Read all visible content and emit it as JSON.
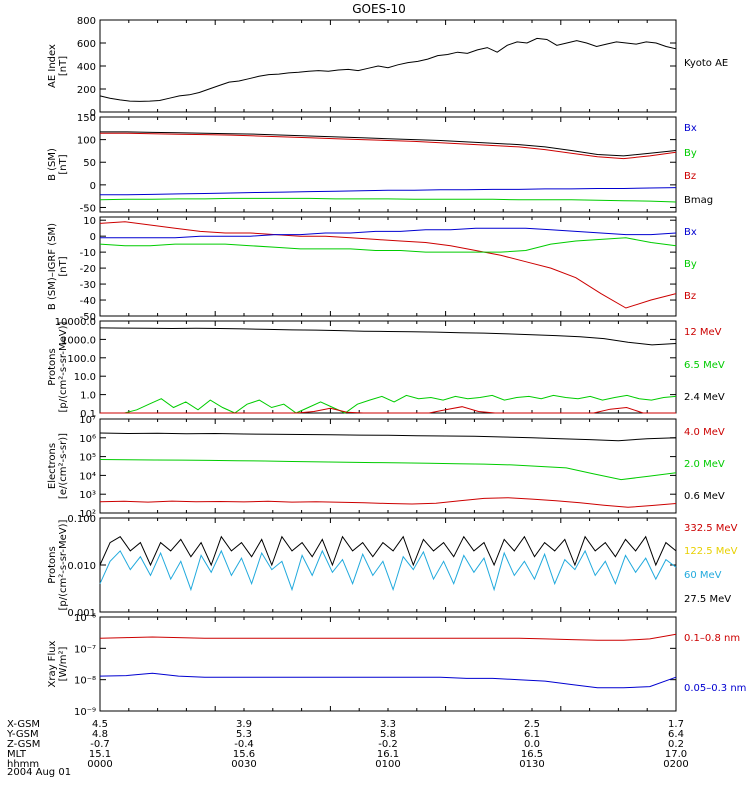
{
  "title": "GOES-10",
  "colors": {
    "black": "#000000",
    "blue": "#0000d0",
    "green": "#00cc00",
    "red": "#cc0000",
    "yellow": "#e8d000",
    "cyan": "#22aadd"
  },
  "chart_data": [
    {
      "type": "line",
      "ylabel": [
        "AE Index",
        "[nT]"
      ],
      "ylim": [
        0,
        800
      ],
      "log": false,
      "ticks": [
        "0",
        "200",
        "400",
        "600",
        "800"
      ],
      "tick_values": [
        0,
        200,
        400,
        600,
        800
      ],
      "legend": [
        {
          "label": "Kyoto AE",
          "color": "black"
        }
      ],
      "series": [
        {
          "name": "Kyoto AE",
          "color": "black",
          "values": [
            140,
            120,
            105,
            95,
            92,
            95,
            100,
            120,
            140,
            150,
            170,
            200,
            230,
            260,
            270,
            290,
            310,
            325,
            330,
            340,
            345,
            355,
            360,
            355,
            365,
            370,
            360,
            380,
            400,
            385,
            410,
            430,
            440,
            460,
            490,
            500,
            520,
            510,
            540,
            560,
            520,
            580,
            610,
            600,
            640,
            630,
            580,
            600,
            620,
            600,
            570,
            590,
            610,
            600,
            590,
            610,
            600,
            570,
            550
          ]
        }
      ]
    },
    {
      "type": "line",
      "ylabel": [
        "B (SM)",
        "[nT]"
      ],
      "ylim": [
        -60,
        150
      ],
      "log": false,
      "ticks": [
        "-50",
        "0",
        "50",
        "100",
        "150"
      ],
      "tick_values": [
        -50,
        0,
        50,
        100,
        150
      ],
      "legend": [
        {
          "label": "Bx",
          "color": "blue"
        },
        {
          "label": "By",
          "color": "green"
        },
        {
          "label": "Bz",
          "color": "red"
        },
        {
          "label": "Bmag",
          "color": "black"
        }
      ],
      "series": [
        {
          "name": "Bmag",
          "color": "black",
          "values": [
            117,
            117,
            116,
            115,
            114,
            113,
            112,
            110,
            108,
            106,
            104,
            102,
            100,
            98,
            95,
            92,
            89,
            84,
            76,
            67,
            64,
            70,
            76
          ]
        },
        {
          "name": "Bz",
          "color": "red",
          "values": [
            114,
            114,
            113,
            112,
            111,
            110,
            108,
            106,
            104,
            102,
            100,
            98,
            96,
            93,
            90,
            87,
            84,
            78,
            70,
            62,
            58,
            64,
            72
          ]
        },
        {
          "name": "Bx",
          "color": "blue",
          "values": [
            -22,
            -22,
            -21,
            -20,
            -19,
            -18,
            -17,
            -16,
            -15,
            -14,
            -13,
            -12,
            -12,
            -11,
            -11,
            -10,
            -10,
            -9,
            -9,
            -8,
            -8,
            -7,
            -6
          ]
        },
        {
          "name": "By",
          "color": "green",
          "values": [
            -33,
            -32,
            -32,
            -31,
            -31,
            -30,
            -30,
            -30,
            -30,
            -31,
            -31,
            -31,
            -32,
            -32,
            -32,
            -32,
            -33,
            -33,
            -33,
            -34,
            -35,
            -36,
            -38
          ]
        }
      ]
    },
    {
      "type": "line",
      "ylabel": [
        "B (SM)–IGRF (SM)",
        "[nT]"
      ],
      "ylim": [
        -50,
        12
      ],
      "log": false,
      "ticks": [
        "-50",
        "-40",
        "-30",
        "-20",
        "-10",
        "0",
        "10"
      ],
      "tick_values": [
        -50,
        -40,
        -30,
        -20,
        -10,
        0,
        10
      ],
      "legend": [
        {
          "label": "Bx",
          "color": "blue"
        },
        {
          "label": "By",
          "color": "green"
        },
        {
          "label": "Bz",
          "color": "red"
        }
      ],
      "series": [
        {
          "name": "Bz",
          "color": "red",
          "values": [
            8,
            9,
            7,
            5,
            3,
            2,
            2,
            1,
            0,
            0,
            -1,
            -2,
            -3,
            -4,
            -6,
            -9,
            -12,
            -16,
            -20,
            -26,
            -36,
            -45,
            -40,
            -36
          ]
        },
        {
          "name": "Bx",
          "color": "blue",
          "values": [
            -1,
            -1,
            -1,
            -1,
            0,
            0,
            0,
            1,
            1,
            2,
            2,
            3,
            3,
            4,
            4,
            5,
            5,
            5,
            4,
            3,
            2,
            1,
            1,
            2
          ]
        },
        {
          "name": "By",
          "color": "green",
          "values": [
            -5,
            -6,
            -6,
            -5,
            -5,
            -5,
            -6,
            -7,
            -8,
            -8,
            -8,
            -9,
            -9,
            -10,
            -10,
            -10,
            -10,
            -9,
            -5,
            -3,
            -2,
            -1,
            -4,
            -6
          ]
        }
      ]
    },
    {
      "type": "line",
      "ylabel": [
        "Protons",
        "[p/(cm²-s-sr-MeV)]"
      ],
      "ylim": [
        0.1,
        10000
      ],
      "log": true,
      "ticks": [
        "0.1",
        "1.0",
        "10.0",
        "100.0",
        "1000.0",
        "10000.0"
      ],
      "tick_values": [
        0.1,
        1,
        10,
        100,
        1000,
        10000
      ],
      "legend": [
        {
          "label": "12 MeV",
          "color": "red"
        },
        {
          "label": "6.5 MeV",
          "color": "green"
        },
        {
          "label": "2.4 MeV",
          "color": "black"
        }
      ],
      "series": [
        {
          "name": "2.4 MeV",
          "color": "black",
          "values": [
            4200,
            4100,
            4000,
            3900,
            4000,
            3900,
            3700,
            3500,
            3300,
            3200,
            3000,
            2800,
            2700,
            2600,
            2500,
            2300,
            2200,
            2000,
            1800,
            1600,
            1400,
            1100,
            700,
            500,
            600
          ]
        },
        {
          "name": "6.5 MeV",
          "color": "green",
          "values": [
            0.1,
            0.1,
            0.1,
            0.15,
            0.3,
            0.6,
            0.2,
            0.4,
            0.15,
            0.5,
            0.2,
            0.1,
            0.3,
            0.5,
            0.2,
            0.3,
            0.1,
            0.2,
            0.4,
            0.2,
            0.1,
            0.3,
            0.5,
            0.8,
            0.4,
            0.9,
            0.6,
            0.7,
            0.5,
            0.8,
            0.6,
            0.7,
            0.9,
            0.5,
            0.7,
            0.8,
            0.6,
            0.9,
            0.7,
            0.6,
            0.8,
            0.5,
            0.7,
            0.9,
            0.6,
            0.5,
            0.7,
            0.8
          ]
        },
        {
          "name": "12 MeV",
          "color": "red",
          "values": [
            0.1,
            0.1,
            0.1,
            0.1,
            0.1,
            0.1,
            0.1,
            0.1,
            0.1,
            0.1,
            0.1,
            0.1,
            0.1,
            0.12,
            0.18,
            0.11,
            0.1,
            0.1,
            0.1,
            0.1,
            0.1,
            0.15,
            0.22,
            0.12,
            0.1,
            0.1,
            0.1,
            0.1,
            0.1,
            0.1,
            0.1,
            0.16,
            0.2,
            0.1,
            0.1,
            0.1
          ]
        }
      ]
    },
    {
      "type": "line",
      "ylabel": [
        "Electrons",
        "[e/(cm²-s-sr)]"
      ],
      "ylim": [
        100,
        10000000
      ],
      "log": true,
      "ticks": [
        "10²",
        "10³",
        "10⁴",
        "10⁵",
        "10⁶",
        "10⁷"
      ],
      "tick_values": [
        100,
        1000,
        10000,
        100000,
        1000000,
        10000000
      ],
      "legend": [
        {
          "label": "4.0 MeV",
          "color": "red"
        },
        {
          "label": "2.0 MeV",
          "color": "green"
        },
        {
          "label": "0.6 MeV",
          "color": "black"
        }
      ],
      "series": [
        {
          "name": "0.6 MeV",
          "color": "black",
          "values": [
            1800000,
            1700000,
            1750000,
            1650000,
            1700000,
            1600000,
            1550000,
            1500000,
            1450000,
            1400000,
            1350000,
            1300000,
            1250000,
            1200000,
            1100000,
            1000000,
            900000,
            800000,
            700000,
            900000,
            1000000
          ]
        },
        {
          "name": "2.0 MeV",
          "color": "green",
          "values": [
            70000,
            68000,
            66000,
            65000,
            63000,
            60000,
            58000,
            55000,
            52000,
            50000,
            48000,
            46000,
            44000,
            42000,
            40000,
            36000,
            30000,
            25000,
            12000,
            6000,
            9000,
            14000
          ]
        },
        {
          "name": "4.0 MeV",
          "color": "red",
          "values": [
            400,
            420,
            380,
            430,
            400,
            410,
            390,
            420,
            380,
            400,
            370,
            350,
            320,
            300,
            330,
            450,
            600,
            650,
            550,
            450,
            350,
            260,
            200,
            250,
            320
          ]
        }
      ]
    },
    {
      "type": "line",
      "ylabel": [
        "Protons",
        "[p/(cm²-s-sr-MeV)]"
      ],
      "ylim": [
        0.001,
        0.1
      ],
      "log": true,
      "ticks": [
        "0.001",
        "0.010",
        "0.100"
      ],
      "tick_values": [
        0.001,
        0.01,
        0.1
      ],
      "legend": [
        {
          "label": "332.5 MeV",
          "color": "red"
        },
        {
          "label": "122.5 MeV",
          "color": "yellow"
        },
        {
          "label": "60 MeV",
          "color": "cyan"
        },
        {
          "label": "27.5 MeV",
          "color": "black"
        }
      ],
      "series": [
        {
          "name": "27.5 MeV",
          "color": "black",
          "values": [
            0.01,
            0.03,
            0.04,
            0.02,
            0.03,
            0.01,
            0.03,
            0.02,
            0.035,
            0.015,
            0.03,
            0.01,
            0.04,
            0.02,
            0.03,
            0.015,
            0.035,
            0.01,
            0.04,
            0.02,
            0.03,
            0.015,
            0.035,
            0.01,
            0.04,
            0.02,
            0.03,
            0.015,
            0.03,
            0.02,
            0.04,
            0.01,
            0.035,
            0.02,
            0.03,
            0.015,
            0.04,
            0.02,
            0.03,
            0.01,
            0.035,
            0.02,
            0.04,
            0.015,
            0.03,
            0.02,
            0.035,
            0.01,
            0.04,
            0.02,
            0.03,
            0.015,
            0.035,
            0.02,
            0.04,
            0.01,
            0.03,
            0.02
          ]
        },
        {
          "name": "60 MeV",
          "color": "cyan",
          "values": [
            0.004,
            0.012,
            0.02,
            0.008,
            0.015,
            0.006,
            0.018,
            0.005,
            0.012,
            0.003,
            0.016,
            0.007,
            0.02,
            0.006,
            0.014,
            0.004,
            0.018,
            0.008,
            0.012,
            0.003,
            0.016,
            0.006,
            0.02,
            0.007,
            0.013,
            0.004,
            0.017,
            0.006,
            0.012,
            0.003,
            0.015,
            0.008,
            0.019,
            0.005,
            0.012,
            0.004,
            0.016,
            0.007,
            0.014,
            0.003,
            0.018,
            0.006,
            0.012,
            0.005,
            0.017,
            0.004,
            0.013,
            0.008,
            0.02,
            0.006,
            0.012,
            0.004,
            0.016,
            0.007,
            0.014,
            0.005,
            0.013,
            0.009
          ]
        },
        {
          "name": "122.5 MeV",
          "color": "yellow",
          "values": []
        },
        {
          "name": "332.5 MeV",
          "color": "red",
          "values": []
        }
      ]
    },
    {
      "type": "line",
      "ylabel": [
        "Xray Flux",
        "[W/m²]"
      ],
      "ylim": [
        1e-09,
        1e-06
      ],
      "log": true,
      "ticks": [
        "10⁻⁹",
        "10⁻⁸",
        "10⁻⁷",
        "10⁻⁶"
      ],
      "tick_values": [
        1e-09,
        1e-08,
        1e-07,
        1e-06
      ],
      "legend": [
        {
          "label": "0.1–0.8 nm",
          "color": "red"
        },
        {
          "label": "0.05–0.3 nm",
          "color": "blue"
        }
      ],
      "series": [
        {
          "name": "0.1–0.8 nm",
          "color": "red",
          "values": [
            2.1e-07,
            2.2e-07,
            2.3e-07,
            2.2e-07,
            2.1e-07,
            2.1e-07,
            2.1e-07,
            2.1e-07,
            2.1e-07,
            2.1e-07,
            2.1e-07,
            2.1e-07,
            2.1e-07,
            2.1e-07,
            2.1e-07,
            2.1e-07,
            2.1e-07,
            2e-07,
            1.9e-07,
            1.8e-07,
            1.8e-07,
            2e-07,
            2.8e-07
          ]
        },
        {
          "name": "0.05–0.3 nm",
          "color": "blue",
          "values": [
            1.3e-08,
            1.35e-08,
            1.6e-08,
            1.3e-08,
            1.2e-08,
            1.2e-08,
            1.2e-08,
            1.2e-08,
            1.2e-08,
            1.2e-08,
            1.2e-08,
            1.2e-08,
            1.2e-08,
            1.2e-08,
            1.1e-08,
            1.1e-08,
            1e-08,
            9e-09,
            7e-09,
            5.5e-09,
            5.5e-09,
            6e-09,
            1.2e-08
          ]
        }
      ]
    }
  ],
  "footer": {
    "rows": [
      {
        "label": "X-GSM",
        "values": [
          "4.5",
          "3.9",
          "3.3",
          "2.5",
          "1.7"
        ]
      },
      {
        "label": "Y-GSM",
        "values": [
          "4.8",
          "5.3",
          "5.8",
          "6.1",
          "6.4"
        ]
      },
      {
        "label": "Z-GSM",
        "values": [
          "-0.7",
          "-0.4",
          "-0.2",
          "0.0",
          "0.2"
        ]
      },
      {
        "label": "MLT",
        "values": [
          "15.1",
          "15.6",
          "16.1",
          "16.5",
          "17.0"
        ]
      },
      {
        "label": "hhmm",
        "values": [
          "0000",
          "0030",
          "0100",
          "0130",
          "0200"
        ]
      }
    ],
    "date": "2004 Aug 01"
  }
}
